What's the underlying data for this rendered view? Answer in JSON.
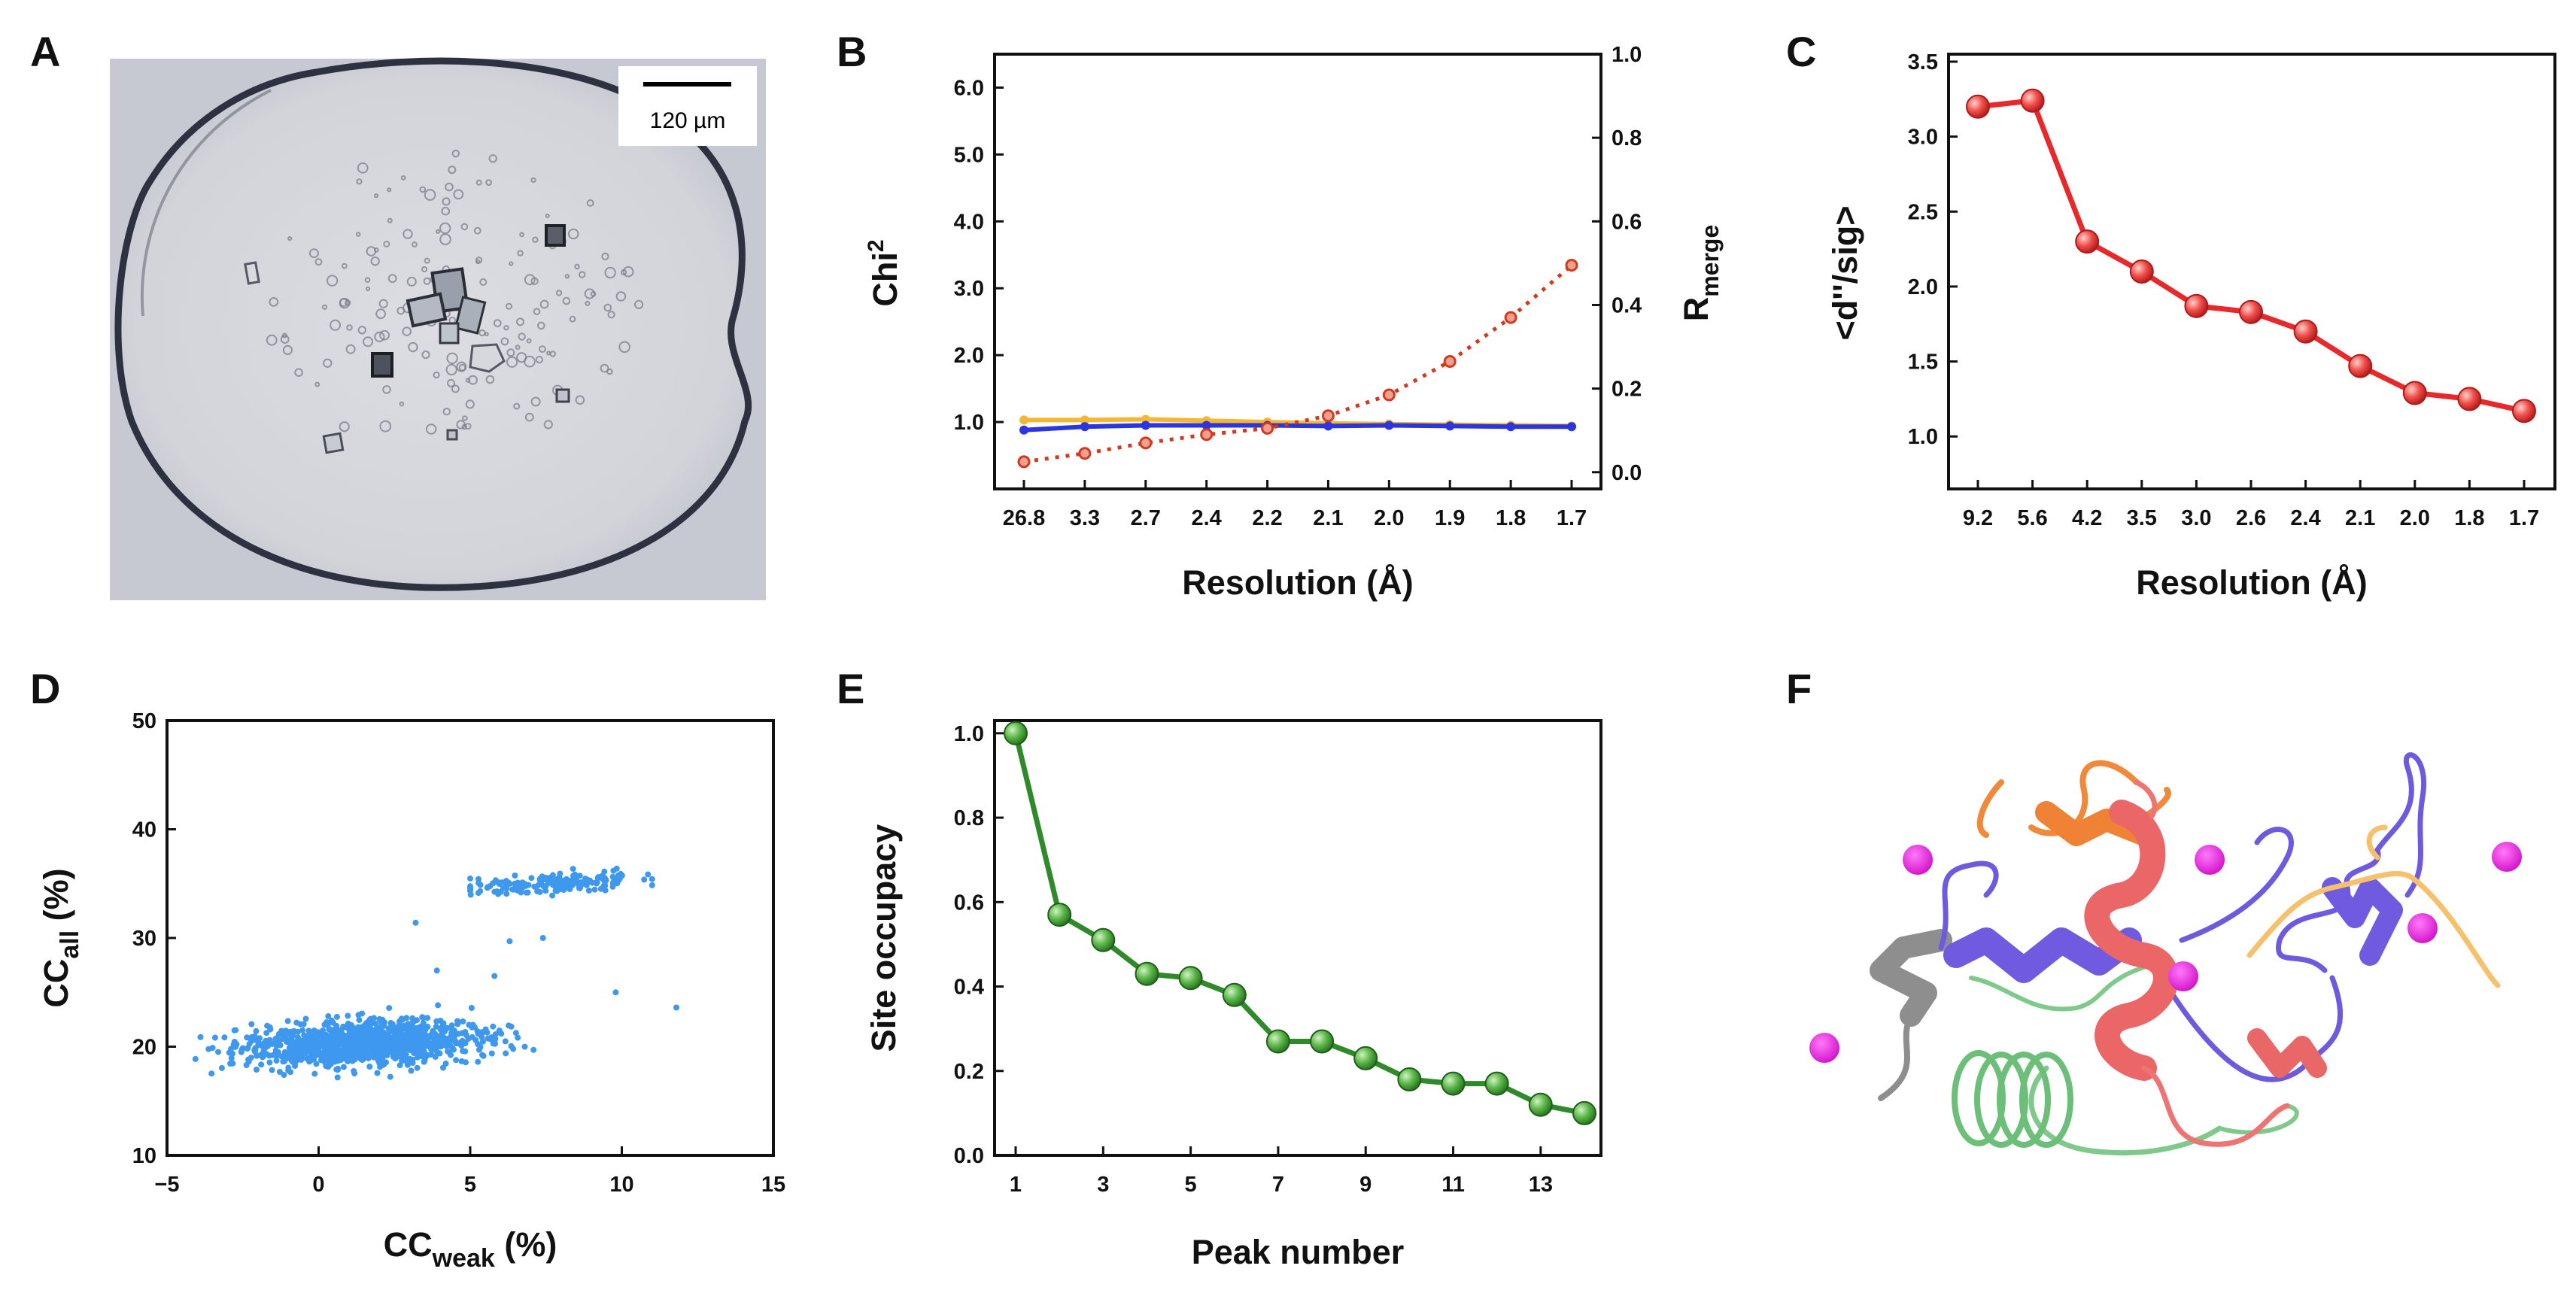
{
  "panel_labels": [
    "A",
    "B",
    "C",
    "D",
    "E",
    "F"
  ],
  "panel_a": {
    "scale_bar_label": "120 µm"
  },
  "colors": {
    "b_chi_a": "#f5b731",
    "b_chi_b": "#2b35e0",
    "b_rmerge": "#d23a1f",
    "c_line": "#e8282b",
    "e_line": "#2f8a2a",
    "d_points": "#3d98ee",
    "mg_ion": "#e81be6"
  },
  "chart_data": [
    {
      "panel": "B",
      "type": "line",
      "categories": [
        "26.8",
        "3.3",
        "2.7",
        "2.4",
        "2.2",
        "2.1",
        "2.0",
        "1.9",
        "1.8",
        "1.7"
      ],
      "xlabel": "Resolution (Å)",
      "ylabel": "Chi",
      "ylabel_sup": "2",
      "ylim": [
        0,
        6.5
      ],
      "yticks": [
        "1.0",
        "2.0",
        "3.0",
        "4.0",
        "5.0",
        "6.0"
      ],
      "y2label": "R",
      "y2label_sub": "merge",
      "y2lim": [
        -0.04,
        1.0
      ],
      "y2ticks": [
        "0.0",
        "0.2",
        "0.4",
        "0.6",
        "0.8",
        "1.0"
      ],
      "series": [
        {
          "name": "Chi2 (orange)",
          "axis": "left",
          "style": "solid",
          "color": "#f5b731",
          "values": [
            1.03,
            1.03,
            1.04,
            1.02,
            1.0,
            0.98,
            0.97,
            0.96,
            0.95,
            0.94
          ]
        },
        {
          "name": "Chi2 (blue)",
          "axis": "left",
          "style": "solid",
          "color": "#2b35e0",
          "values": [
            0.88,
            0.93,
            0.95,
            0.95,
            0.95,
            0.94,
            0.95,
            0.94,
            0.93,
            0.93
          ]
        },
        {
          "name": "Rmerge",
          "axis": "right",
          "style": "dotted",
          "color": "#d23a1f",
          "values": [
            0.025,
            0.045,
            0.07,
            0.09,
            0.105,
            0.135,
            0.185,
            0.265,
            0.37,
            0.495
          ]
        }
      ]
    },
    {
      "panel": "C",
      "type": "line",
      "categories": [
        "9.2",
        "5.6",
        "4.2",
        "3.5",
        "3.0",
        "2.6",
        "2.4",
        "2.1",
        "2.0",
        "1.8",
        "1.7"
      ],
      "xlabel": "Resolution (Å)",
      "ylabel": "<d''/sig>",
      "ylim": [
        0.65,
        3.55
      ],
      "yticks": [
        "1.0",
        "1.5",
        "2.0",
        "2.5",
        "3.0",
        "3.5"
      ],
      "series": [
        {
          "name": "anomalous signal",
          "color": "#e8282b",
          "values": [
            3.2,
            3.24,
            2.3,
            2.1,
            1.87,
            1.83,
            1.7,
            1.47,
            1.29,
            1.25,
            1.17
          ]
        }
      ]
    },
    {
      "panel": "D",
      "type": "scatter",
      "xlabel": "CC",
      "xlabel_sub": "weak",
      "xlabel_unit": " (%)",
      "ylabel": "CC",
      "ylabel_sub": "all",
      "ylabel_unit": " (%)",
      "xlim": [
        -5,
        15
      ],
      "ylim": [
        10,
        50
      ],
      "xticks": [
        "−5",
        "0",
        "5",
        "10",
        "15"
      ],
      "yticks": [
        "10",
        "20",
        "30",
        "40",
        "50"
      ],
      "clusters": [
        {
          "name": "main cluster",
          "n": 1100,
          "x_mean": 1.5,
          "x_sd": 2.0,
          "y_mean": 20.3,
          "y_sd": 1.8,
          "x_range": [
            -4.5,
            8.0
          ]
        },
        {
          "name": "upper cluster",
          "n": 170,
          "x_mean": 7.7,
          "x_sd": 1.4,
          "y_mean": 35.0,
          "y_sd": 0.8,
          "x_range": [
            5.0,
            11.0
          ]
        }
      ],
      "outliers": [
        [
          5.8,
          26.5
        ],
        [
          9.8,
          25.0
        ],
        [
          11.8,
          23.6
        ],
        [
          7.4,
          30.0
        ],
        [
          3.9,
          27.0
        ],
        [
          6.3,
          29.7
        ],
        [
          3.2,
          31.4
        ]
      ]
    },
    {
      "panel": "E",
      "type": "line",
      "x": [
        1,
        2,
        3,
        4,
        5,
        6,
        7,
        8,
        9,
        10,
        11,
        12,
        13,
        14
      ],
      "xticks": [
        "1",
        "3",
        "5",
        "7",
        "9",
        "11",
        "13"
      ],
      "xlabel": "Peak number",
      "ylabel": "Site occupacy",
      "ylim": [
        0,
        1.03
      ],
      "yticks": [
        "0.0",
        "0.2",
        "0.4",
        "0.6",
        "0.8",
        "1.0"
      ],
      "series": [
        {
          "name": "occupancy",
          "color": "#2f8a2a",
          "values": [
            1.0,
            0.57,
            0.51,
            0.43,
            0.42,
            0.38,
            0.27,
            0.27,
            0.23,
            0.18,
            0.17,
            0.17,
            0.12,
            0.1
          ]
        }
      ]
    }
  ]
}
